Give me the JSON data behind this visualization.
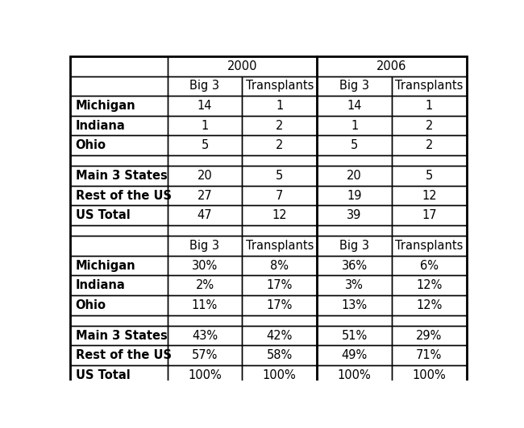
{
  "year_headers": [
    "2000",
    "2006"
  ],
  "sub_headers": [
    "Big 3",
    "Transplants",
    "Big 3",
    "Transplants"
  ],
  "rows_top": [
    [
      "Michigan",
      "14",
      "1",
      "14",
      "1"
    ],
    [
      "Indiana",
      "1",
      "2",
      "1",
      "2"
    ],
    [
      "Ohio",
      "5",
      "2",
      "5",
      "2"
    ],
    [
      "Main 3 States",
      "20",
      "5",
      "20",
      "5"
    ],
    [
      "Rest of the US",
      "27",
      "7",
      "19",
      "12"
    ],
    [
      "US Total",
      "47",
      "12",
      "39",
      "17"
    ]
  ],
  "rows_bottom": [
    [
      "Michigan",
      "30%",
      "8%",
      "36%",
      "6%"
    ],
    [
      "Indiana",
      "2%",
      "17%",
      "3%",
      "12%"
    ],
    [
      "Ohio",
      "11%",
      "17%",
      "13%",
      "12%"
    ],
    [
      "Main 3 States",
      "43%",
      "42%",
      "51%",
      "29%"
    ],
    [
      "Rest of the US",
      "57%",
      "58%",
      "49%",
      "71%"
    ],
    [
      "US Total",
      "100%",
      "100%",
      "100%",
      "100%"
    ]
  ],
  "background_color": "#ffffff",
  "line_color": "#000000",
  "text_color": "#000000",
  "font_size": 10.5,
  "font_family": "DejaVu Sans"
}
